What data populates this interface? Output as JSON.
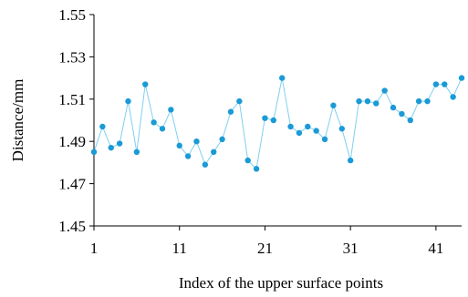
{
  "chart_data": {
    "type": "line",
    "title": "",
    "xlabel": "Index of the upper surface points",
    "ylabel": "Distance/mm",
    "xlim": [
      1,
      44
    ],
    "ylim": [
      1.45,
      1.55
    ],
    "x_ticks": [
      1,
      11,
      21,
      31,
      41
    ],
    "y_ticks": [
      1.45,
      1.47,
      1.49,
      1.51,
      1.53,
      1.55
    ],
    "y_tick_labels": [
      "1.45",
      "1.47",
      "1.49",
      "1.51",
      "1.53",
      "1.55"
    ],
    "grid": false,
    "legend": "none",
    "series": [
      {
        "line_color": "#7fd0ee",
        "marker_color": "#1a9ad6",
        "marker": "circle",
        "x": [
          1,
          2,
          3,
          4,
          5,
          6,
          7,
          8,
          9,
          10,
          11,
          12,
          13,
          14,
          15,
          16,
          17,
          18,
          19,
          20,
          21,
          22,
          23,
          24,
          25,
          26,
          27,
          28,
          29,
          30,
          31,
          32,
          33,
          34,
          35,
          36,
          37,
          38,
          39,
          40,
          41,
          42,
          43,
          44
        ],
        "values": [
          1.485,
          1.497,
          1.487,
          1.489,
          1.509,
          1.485,
          1.517,
          1.499,
          1.496,
          1.505,
          1.488,
          1.483,
          1.49,
          1.479,
          1.485,
          1.491,
          1.504,
          1.509,
          1.481,
          1.477,
          1.501,
          1.5,
          1.52,
          1.497,
          1.494,
          1.497,
          1.495,
          1.491,
          1.507,
          1.496,
          1.481,
          1.509,
          1.509,
          1.508,
          1.514,
          1.506,
          1.503,
          1.5,
          1.509,
          1.509,
          1.517,
          1.517,
          1.511,
          1.52
        ]
      }
    ]
  }
}
